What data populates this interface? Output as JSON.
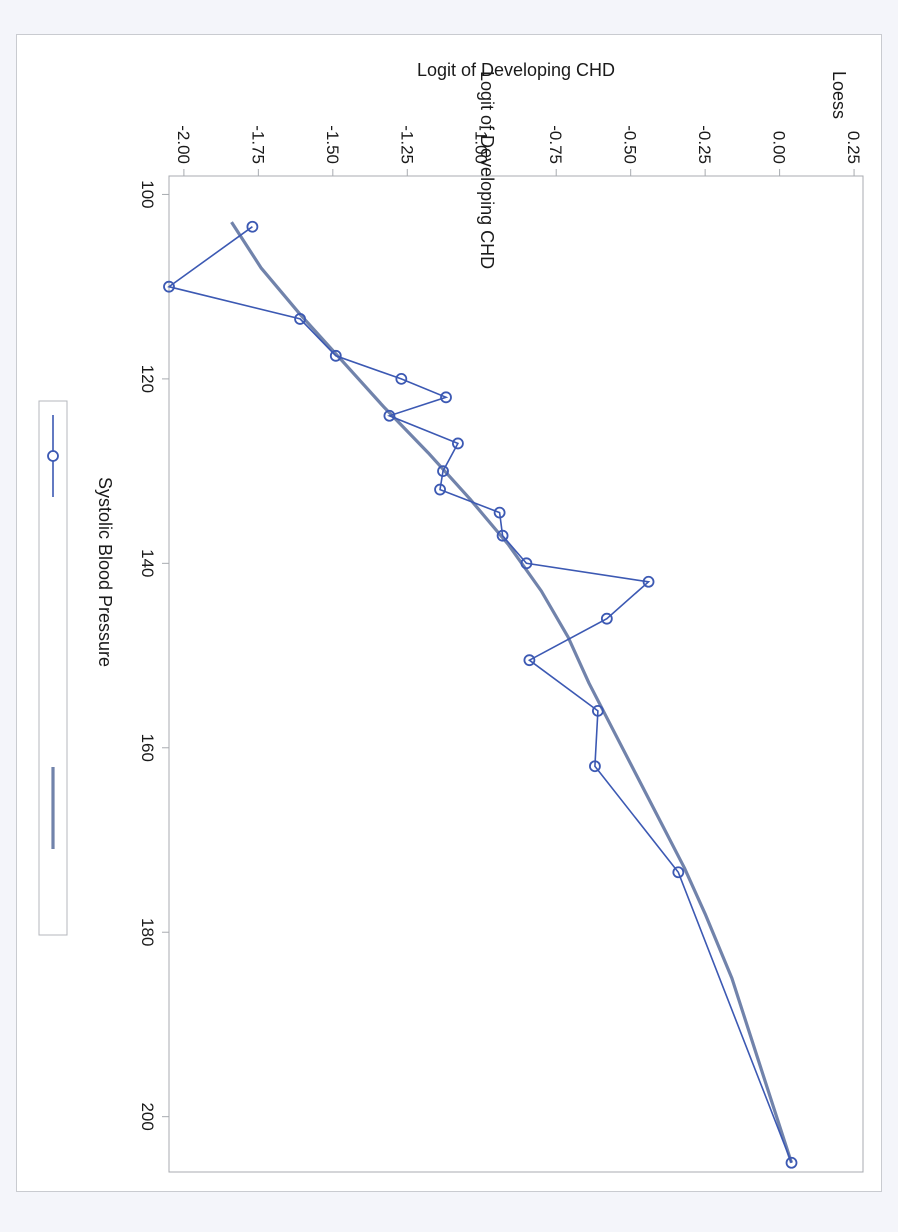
{
  "colors": {
    "page_bg": "#f4f5fa",
    "panel_bg": "#ffffff",
    "series": "#3c59b3",
    "loess": "#7183ab",
    "axis": "#a8abb0",
    "text": "#1a1a1a"
  },
  "chart_data": {
    "type": "line",
    "orientation": "rotated-90-clockwise",
    "xlabel": "Systolic Blood Pressure",
    "ylabel": "Logit of Developing CHD",
    "xlim": [
      98,
      206
    ],
    "ylim": [
      -2.05,
      0.28
    ],
    "x_ticks": [
      "100",
      "120",
      "140",
      "160",
      "180",
      "200"
    ],
    "y_ticks": [
      "-2.00",
      "-1.75",
      "-1.50",
      "-1.25",
      "-1.00",
      "-0.75",
      "-0.50",
      "-0.25",
      "0.00",
      "0.25"
    ],
    "grid": false,
    "legend_position": "bottom",
    "series": [
      {
        "name": "Logit of Developing CHD",
        "style": "line-with-circle-markers",
        "points": [
          [
            103.5,
            -1.77
          ],
          [
            110,
            -2.05
          ],
          [
            113.5,
            -1.61
          ],
          [
            117.5,
            -1.49
          ],
          [
            120,
            -1.27
          ],
          [
            122,
            -1.12
          ],
          [
            124,
            -1.31
          ],
          [
            127,
            -1.08
          ],
          [
            130,
            -1.13
          ],
          [
            132,
            -1.14
          ],
          [
            134.5,
            -0.94
          ],
          [
            137,
            -0.93
          ],
          [
            140,
            -0.85
          ],
          [
            142,
            -0.44
          ],
          [
            146,
            -0.58
          ],
          [
            150.5,
            -0.84
          ],
          [
            156,
            -0.61
          ],
          [
            162,
            -0.62
          ],
          [
            173.5,
            -0.34
          ],
          [
            205,
            0.04
          ]
        ]
      },
      {
        "name": "Loess",
        "style": "line",
        "points": [
          [
            103,
            -1.84
          ],
          [
            108,
            -1.74
          ],
          [
            113,
            -1.61
          ],
          [
            118,
            -1.47
          ],
          [
            123,
            -1.33
          ],
          [
            128,
            -1.18
          ],
          [
            133,
            -1.04
          ],
          [
            138,
            -0.91
          ],
          [
            143,
            -0.8
          ],
          [
            148,
            -0.71
          ],
          [
            153,
            -0.64
          ],
          [
            158,
            -0.56
          ],
          [
            163,
            -0.48
          ],
          [
            168,
            -0.4
          ],
          [
            173,
            -0.32
          ],
          [
            178,
            -0.25
          ],
          [
            185,
            -0.16
          ],
          [
            195,
            -0.06
          ],
          [
            205,
            0.04
          ]
        ]
      }
    ]
  }
}
